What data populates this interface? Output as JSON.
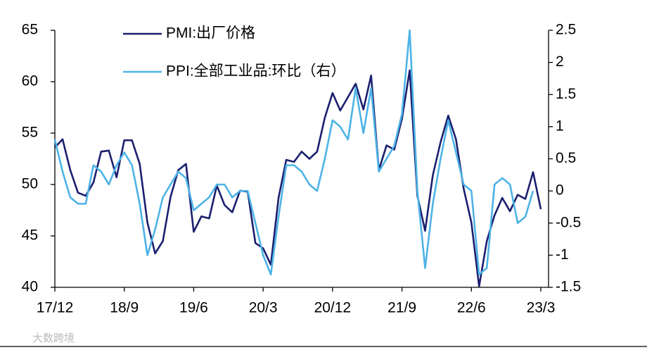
{
  "chart_data": {
    "type": "line",
    "categories": [
      "17/12",
      null,
      null,
      null,
      null,
      null,
      null,
      null,
      null,
      "18/9",
      null,
      null,
      null,
      null,
      null,
      null,
      null,
      null,
      "19/6",
      null,
      null,
      null,
      null,
      null,
      null,
      null,
      null,
      "20/3",
      null,
      null,
      null,
      null,
      null,
      null,
      null,
      null,
      "20/12",
      null,
      null,
      null,
      null,
      null,
      null,
      null,
      null,
      "21/9",
      null,
      null,
      null,
      null,
      null,
      null,
      null,
      null,
      "22/6",
      null,
      null,
      null,
      null,
      null,
      null,
      null,
      null,
      "23/3"
    ],
    "series": [
      {
        "name": "PMI:出厂价格",
        "color": "#1b1f6e",
        "axis": "y",
        "values": [
          53.6,
          54.4,
          51.4,
          49.2,
          48.9,
          50.2,
          53.2,
          53.3,
          50.7,
          54.3,
          54.3,
          52.0,
          46.3,
          43.3,
          44.5,
          48.8,
          51.4,
          52.0,
          45.4,
          46.9,
          46.7,
          49.9,
          48.0,
          47.3,
          49.4,
          49.3,
          44.3,
          43.8,
          42.2,
          48.7,
          52.4,
          52.2,
          53.2,
          52.5,
          53.2,
          56.5,
          58.9,
          57.2,
          58.5,
          59.8,
          57.3,
          60.6,
          51.4,
          53.8,
          53.4,
          56.4,
          61.1,
          48.9,
          45.5,
          50.9,
          54.1,
          56.7,
          54.4,
          49.6,
          46.3,
          40.1,
          44.5,
          47.0,
          48.7,
          47.4,
          49.0,
          48.6,
          51.2,
          47.6
        ]
      },
      {
        "name": "PPI:全部工业品:环比（右）",
        "color": "#4db3e6",
        "axis": "y2",
        "values": [
          0.8,
          0.3,
          -0.1,
          -0.2,
          -0.2,
          0.4,
          0.3,
          0.1,
          0.4,
          0.6,
          0.4,
          -0.2,
          -1.0,
          -0.6,
          -0.1,
          0.1,
          0.3,
          0.2,
          -0.3,
          -0.2,
          -0.1,
          0.1,
          0.1,
          -0.1,
          0.0,
          0.0,
          -0.5,
          -1.0,
          -1.3,
          -0.4,
          0.4,
          0.4,
          0.3,
          0.1,
          0.0,
          0.5,
          1.1,
          1.0,
          0.8,
          1.6,
          0.9,
          1.6,
          0.3,
          0.5,
          0.7,
          1.2,
          2.5,
          0.0,
          -1.2,
          -0.2,
          0.5,
          1.1,
          0.6,
          0.1,
          0.0,
          -1.3,
          -1.2,
          0.1,
          0.2,
          0.1,
          -0.5,
          -0.4,
          0.0,
          null
        ]
      }
    ],
    "ylim": [
      40,
      65
    ],
    "yticks": [
      40,
      45,
      50,
      55,
      60,
      65
    ],
    "y2lim": [
      -1.5,
      2.5
    ],
    "y2ticks": [
      -1.5,
      -1,
      -0.5,
      0,
      0.5,
      1,
      1.5,
      2,
      2.5
    ],
    "watermark": "大数跨境"
  }
}
